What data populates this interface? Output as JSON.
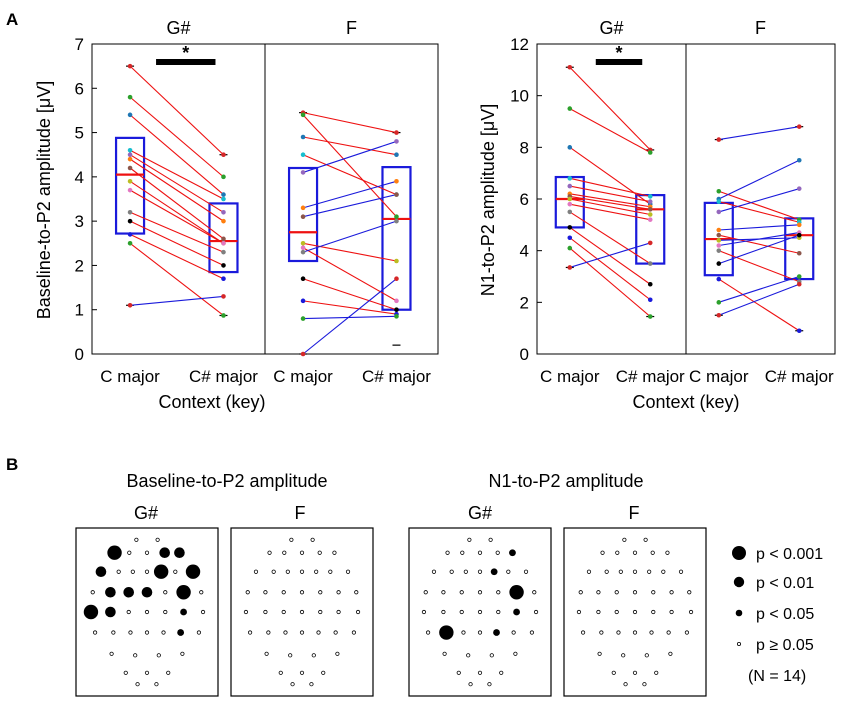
{
  "chart_data": [
    {
      "type": "box-paired",
      "panel_label": "A",
      "ylabel": "Baseline-to-P2 amplitude [μV]",
      "xlabel": "Context (key)",
      "ylim": [
        0,
        7
      ],
      "yticks": [
        "0",
        "1",
        "2",
        "3",
        "4",
        "5",
        "6",
        "7"
      ],
      "categories": [
        "C major",
        "C# major"
      ],
      "significance_marker": "*",
      "subplots": [
        {
          "title": "G#",
          "significant": true,
          "boxes": [
            {
              "q1": 2.72,
              "median": 4.05,
              "q3": 4.88,
              "min": 1.1,
              "max": 6.5
            },
            {
              "q1": 1.85,
              "median": 2.55,
              "q3": 3.4,
              "min": 0.87,
              "max": 4.5
            }
          ],
          "pairs": [
            [
              6.5,
              4.5
            ],
            [
              5.8,
              4.0
            ],
            [
              5.4,
              3.6
            ],
            [
              4.6,
              3.5
            ],
            [
              4.5,
              3.2
            ],
            [
              4.4,
              3.0
            ],
            [
              4.2,
              2.6
            ],
            [
              3.9,
              2.5
            ],
            [
              3.7,
              2.5
            ],
            [
              3.2,
              2.3
            ],
            [
              3.0,
              2.0
            ],
            [
              2.7,
              1.7
            ],
            [
              2.5,
              0.87
            ],
            [
              1.1,
              1.3
            ]
          ]
        },
        {
          "title": "F",
          "significant": false,
          "boxes": [
            {
              "q1": 2.1,
              "median": 2.75,
              "q3": 4.2,
              "min": 0.0,
              "max": 5.45
            },
            {
              "q1": 1.0,
              "median": 3.05,
              "q3": 4.22,
              "min": 0.2,
              "max": 5.0
            }
          ],
          "pairs": [
            [
              5.45,
              5.0
            ],
            [
              5.4,
              3.1
            ],
            [
              4.9,
              4.5
            ],
            [
              4.5,
              3.6
            ],
            [
              4.1,
              4.8
            ],
            [
              3.3,
              3.9
            ],
            [
              3.1,
              3.6
            ],
            [
              2.5,
              2.1
            ],
            [
              2.4,
              1.2
            ],
            [
              2.3,
              3.0
            ],
            [
              1.7,
              1.0
            ],
            [
              1.2,
              0.9
            ],
            [
              0.8,
              0.85
            ],
            [
              0.0,
              1.7
            ]
          ]
        }
      ]
    },
    {
      "type": "box-paired",
      "panel_label": "",
      "ylabel": "N1-to-P2 amplitude [μV]",
      "xlabel": "Context (key)",
      "ylim": [
        0,
        12
      ],
      "yticks": [
        "0",
        "2",
        "4",
        "6",
        "8",
        "10",
        "12"
      ],
      "categories": [
        "C major",
        "C# major"
      ],
      "significance_marker": "*",
      "subplots": [
        {
          "title": "G#",
          "significant": true,
          "boxes": [
            {
              "q1": 4.9,
              "median": 6.0,
              "q3": 6.85,
              "min": 3.35,
              "max": 11.1
            },
            {
              "q1": 3.5,
              "median": 5.6,
              "q3": 6.15,
              "min": 1.45,
              "max": 7.9
            }
          ],
          "pairs": [
            [
              11.1,
              7.9
            ],
            [
              9.5,
              7.8
            ],
            [
              8.0,
              5.8
            ],
            [
              6.8,
              6.1
            ],
            [
              6.5,
              5.9
            ],
            [
              6.2,
              5.7
            ],
            [
              6.1,
              5.6
            ],
            [
              6.0,
              5.4
            ],
            [
              5.8,
              5.2
            ],
            [
              5.5,
              3.5
            ],
            [
              4.9,
              2.7
            ],
            [
              4.5,
              2.1
            ],
            [
              4.1,
              1.45
            ],
            [
              3.35,
              4.3
            ]
          ]
        },
        {
          "title": "F",
          "significant": false,
          "boxes": [
            {
              "q1": 3.05,
              "median": 4.45,
              "q3": 5.85,
              "min": 1.5,
              "max": 8.3
            },
            {
              "q1": 2.9,
              "median": 4.6,
              "q3": 5.25,
              "min": 0.9,
              "max": 8.8
            }
          ],
          "pairs": [
            [
              8.3,
              8.8
            ],
            [
              6.3,
              5.2
            ],
            [
              6.0,
              7.5
            ],
            [
              5.9,
              5.1
            ],
            [
              5.5,
              6.4
            ],
            [
              4.8,
              5.0
            ],
            [
              4.6,
              3.9
            ],
            [
              4.4,
              4.5
            ],
            [
              4.2,
              4.7
            ],
            [
              4.0,
              2.8
            ],
            [
              3.5,
              4.6
            ],
            [
              2.9,
              0.9
            ],
            [
              2.0,
              3.0
            ],
            [
              1.5,
              2.7
            ]
          ]
        }
      ]
    },
    {
      "type": "scatter",
      "panel_label": "B",
      "title": "Baseline-to-P2 amplitude",
      "subplot_titles": [
        "G#",
        "F"
      ],
      "note": "electrode significance maps; dot size encodes p-value level (0 = p ≥ 0.05, 1 = p < 0.05, 2 = p < 0.01, 3 = p < 0.001)",
      "maps": [
        [
          0,
          0,
          3,
          0,
          0,
          2,
          2,
          2,
          0,
          0,
          0,
          3,
          0,
          3,
          0,
          2,
          2,
          2,
          0,
          3,
          0,
          3,
          2,
          0,
          0,
          0,
          1,
          0,
          0,
          0,
          0,
          0,
          0,
          1,
          0,
          0,
          0
        ],
        [
          0,
          0,
          0,
          0,
          0,
          0,
          0,
          0,
          0,
          0,
          0,
          0,
          0,
          0,
          0,
          0,
          0,
          0,
          0,
          0,
          0,
          0,
          0,
          0,
          0,
          0,
          0,
          0,
          0,
          0,
          0,
          0,
          0,
          0,
          0,
          0,
          0
        ]
      ]
    },
    {
      "type": "scatter",
      "panel_label": "",
      "title": "N1-to-P2 amplitude",
      "subplot_titles": [
        "G#",
        "F"
      ],
      "note": "electrode significance maps; dot size encodes p-value level (0 = p ≥ 0.05, 1 = p < 0.05, 2 = p < 0.01, 3 = p < 0.001)",
      "maps": [
        [
          0,
          0,
          0,
          0,
          0,
          0,
          1,
          0,
          0,
          0,
          0,
          1,
          0,
          0,
          0,
          0,
          0,
          0,
          0,
          3,
          0,
          0,
          0,
          0,
          0,
          0,
          1,
          0,
          0,
          3,
          0,
          0,
          1,
          0,
          0,
          0,
          0
        ],
        [
          0,
          0,
          0,
          0,
          0,
          0,
          0,
          0,
          0,
          0,
          0,
          0,
          0,
          0,
          0,
          0,
          0,
          0,
          0,
          0,
          0,
          0,
          0,
          0,
          0,
          0,
          0,
          0,
          0,
          0,
          0,
          0,
          0,
          0,
          0,
          0,
          0
        ]
      ]
    }
  ],
  "legend": {
    "items": [
      "p < 0.001",
      "p < 0.01",
      "p < 0.05",
      "p ≥ 0.05"
    ],
    "n_label": "(N = 14)"
  },
  "colors": {
    "box": "#1a1adb",
    "median": "#ee1111",
    "line_decrease": "#ee1111",
    "line_increase": "#1a1adb",
    "dots": [
      "#d62728",
      "#2ca02c",
      "#1f77b4",
      "#17becf",
      "#9467bd",
      "#ff7f0e",
      "#8c564b",
      "#bcbd22",
      "#e377c2",
      "#7f7f7f",
      "#000000",
      "#1a1adb",
      "#2ca02c",
      "#d62728"
    ]
  }
}
